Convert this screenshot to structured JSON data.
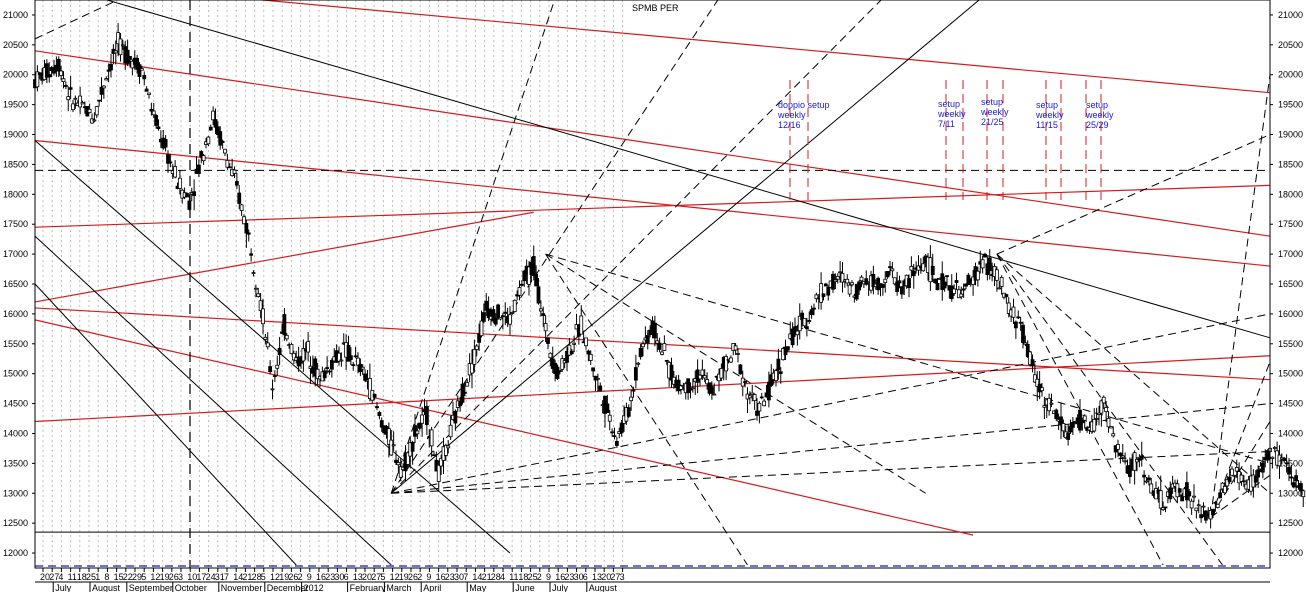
{
  "chart_data": {
    "type": "candlestick",
    "title": "SPMB PER",
    "y_ticks": [
      12000,
      12500,
      13000,
      13500,
      14000,
      14500,
      15000,
      15500,
      16000,
      16500,
      17000,
      17500,
      18000,
      18500,
      19000,
      19500,
      20000,
      20500,
      21000
    ],
    "ylim": [
      11750,
      21250
    ],
    "date_ticks": [
      "20",
      "27",
      "4",
      "11",
      "18",
      "25",
      "1",
      "8",
      "15",
      "22",
      "29",
      "5",
      "12",
      "19",
      "26",
      "3",
      "10",
      "17",
      "24",
      "31",
      "7",
      "14",
      "21",
      "28",
      "5",
      "12",
      "19",
      "26",
      "2",
      "9",
      "16",
      "23",
      "30",
      "6",
      "13",
      "20",
      "27",
      "5",
      "12",
      "19",
      "26",
      "2",
      "9",
      "16",
      "23",
      "30",
      "7",
      "14",
      "21",
      "28",
      "4",
      "11",
      "18",
      "25",
      "2",
      "9",
      "16",
      "23",
      "30",
      "6",
      "13",
      "20",
      "27",
      "3"
    ],
    "months": [
      "July",
      "August",
      "September",
      "October",
      "November",
      "December",
      "2012",
      "February",
      "March",
      "April",
      "May",
      "June",
      "July",
      "August"
    ],
    "annotations": [
      "doppio setup",
      "weekly",
      "12/16",
      "setup",
      "weekly",
      "7/11",
      "setup",
      "weekly",
      "21/25",
      "setup",
      "weekly",
      "11/15",
      "setup",
      "weekly",
      "25/29"
    ],
    "price_path": [
      [
        0,
        19900
      ],
      [
        2,
        20200
      ],
      [
        3,
        19600
      ],
      [
        5,
        19300
      ],
      [
        6,
        20000
      ],
      [
        7,
        20500
      ],
      [
        9,
        20100
      ],
      [
        10,
        19300
      ],
      [
        12,
        18200
      ],
      [
        13,
        17900
      ],
      [
        14,
        18600
      ],
      [
        15,
        19300
      ],
      [
        16,
        18700
      ],
      [
        17,
        18100
      ],
      [
        18,
        17300
      ],
      [
        19,
        16200
      ],
      [
        20,
        14800
      ],
      [
        21,
        15800
      ],
      [
        22,
        15200
      ],
      [
        23,
        15400
      ],
      [
        24,
        14900
      ],
      [
        25,
        15200
      ],
      [
        26,
        15400
      ],
      [
        27,
        15200
      ],
      [
        28,
        14900
      ],
      [
        29,
        14300
      ],
      [
        30,
        13800
      ],
      [
        31,
        13400
      ],
      [
        32,
        14000
      ],
      [
        33,
        14300
      ],
      [
        34,
        13300
      ],
      [
        35,
        14000
      ],
      [
        36,
        14700
      ],
      [
        37,
        15300
      ],
      [
        38,
        16100
      ],
      [
        39,
        16000
      ],
      [
        40,
        15900
      ],
      [
        41,
        16500
      ],
      [
        42,
        16800
      ],
      [
        43,
        15700
      ],
      [
        44,
        15000
      ],
      [
        45,
        15400
      ],
      [
        46,
        15800
      ],
      [
        47,
        15100
      ],
      [
        48,
        14500
      ],
      [
        49,
        13900
      ],
      [
        50,
        14400
      ],
      [
        51,
        15400
      ],
      [
        52,
        15800
      ],
      [
        53,
        15300
      ],
      [
        54,
        14800
      ],
      [
        55,
        14800
      ],
      [
        56,
        15000
      ],
      [
        57,
        14700
      ],
      [
        58,
        15100
      ],
      [
        59,
        15400
      ],
      [
        60,
        14700
      ],
      [
        61,
        14400
      ],
      [
        62,
        14800
      ],
      [
        63,
        15300
      ],
      [
        64,
        15700
      ],
      [
        65,
        15900
      ],
      [
        66,
        16300
      ],
      [
        67,
        16500
      ],
      [
        68,
        16600
      ],
      [
        69,
        16400
      ],
      [
        70,
        16600
      ],
      [
        71,
        16500
      ],
      [
        72,
        16700
      ],
      [
        73,
        16400
      ],
      [
        74,
        16700
      ],
      [
        75,
        16900
      ],
      [
        76,
        16500
      ],
      [
        77,
        16500
      ],
      [
        78,
        16300
      ],
      [
        79,
        16600
      ],
      [
        80,
        16900
      ],
      [
        81,
        16600
      ],
      [
        82,
        16100
      ],
      [
        83,
        15800
      ],
      [
        84,
        15100
      ],
      [
        85,
        14600
      ],
      [
        86,
        14300
      ],
      [
        87,
        14000
      ],
      [
        88,
        14200
      ],
      [
        89,
        14100
      ],
      [
        90,
        14500
      ],
      [
        91,
        13800
      ],
      [
        92,
        13400
      ],
      [
        93,
        13600
      ],
      [
        94,
        13100
      ],
      [
        95,
        12800
      ],
      [
        96,
        13100
      ],
      [
        97,
        13000
      ],
      [
        98,
        12700
      ],
      [
        99,
        12600
      ],
      [
        100,
        13000
      ],
      [
        101,
        13400
      ],
      [
        102,
        13100
      ],
      [
        103,
        13300
      ],
      [
        104,
        13700
      ],
      [
        105,
        13500
      ],
      [
        106,
        13200
      ],
      [
        107,
        13100
      ]
    ],
    "red_lines": [
      [
        0,
        21600,
        104,
        19700
      ],
      [
        0,
        20400,
        104,
        17300
      ],
      [
        0,
        18900,
        104,
        16800
      ],
      [
        0,
        16100,
        104,
        14900
      ],
      [
        0,
        14200,
        104,
        15300
      ],
      [
        0,
        17450,
        104,
        18150
      ],
      [
        0,
        16200,
        42,
        17700
      ],
      [
        0,
        15900,
        79,
        12300
      ]
    ],
    "black_lines": [
      [
        0,
        21600,
        104,
        15600
      ],
      [
        0,
        18900,
        40,
        12000
      ],
      [
        0,
        17300,
        30,
        11800
      ],
      [
        0,
        16500,
        22,
        11800
      ],
      [
        30,
        13000,
        90,
        23000
      ]
    ],
    "black_dashed_lines": [
      [
        30,
        13000,
        45,
        22000
      ],
      [
        30,
        13000,
        60,
        22000
      ],
      [
        30,
        13000,
        75,
        22000
      ],
      [
        30,
        13000,
        104,
        16000
      ],
      [
        30,
        13000,
        104,
        14500
      ],
      [
        30,
        13000,
        104,
        13700
      ],
      [
        43,
        17000,
        60,
        11800
      ],
      [
        43,
        17000,
        75,
        13000
      ],
      [
        43,
        17000,
        104,
        13500
      ],
      [
        81,
        17000,
        100,
        11800
      ],
      [
        81,
        17000,
        104,
        13000
      ],
      [
        81,
        17000,
        95,
        11800
      ],
      [
        81,
        17000,
        104,
        19000
      ],
      [
        99,
        12600,
        104,
        20000
      ],
      [
        99,
        12600,
        104,
        15200
      ],
      [
        99,
        12600,
        104,
        14200
      ],
      [
        99,
        12600,
        104,
        13300
      ],
      [
        0,
        18400,
        104,
        18400
      ],
      [
        0,
        20600,
        15,
        22000
      ]
    ]
  }
}
